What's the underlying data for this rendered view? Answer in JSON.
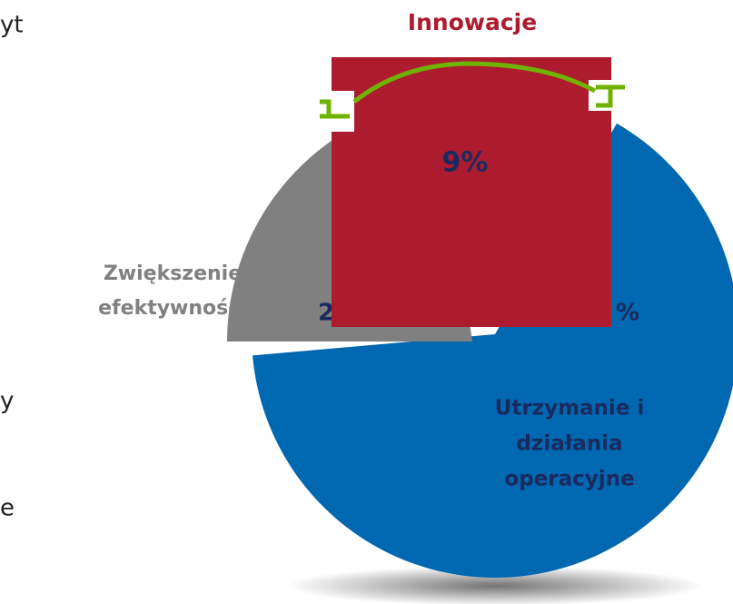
{
  "fragments": [
    "yt",
    "y",
    "e"
  ],
  "innovation": {
    "label": "Innowacje",
    "value_label": "9%"
  },
  "efficiency": {
    "label_lines": [
      "Zwiększenie",
      "efektywności"
    ],
    "value_label_fragment": "2"
  },
  "operations": {
    "label_lines": [
      "Utrzymanie i",
      "działania",
      "operacyjne"
    ],
    "value_label_fragment": "%"
  }
}
